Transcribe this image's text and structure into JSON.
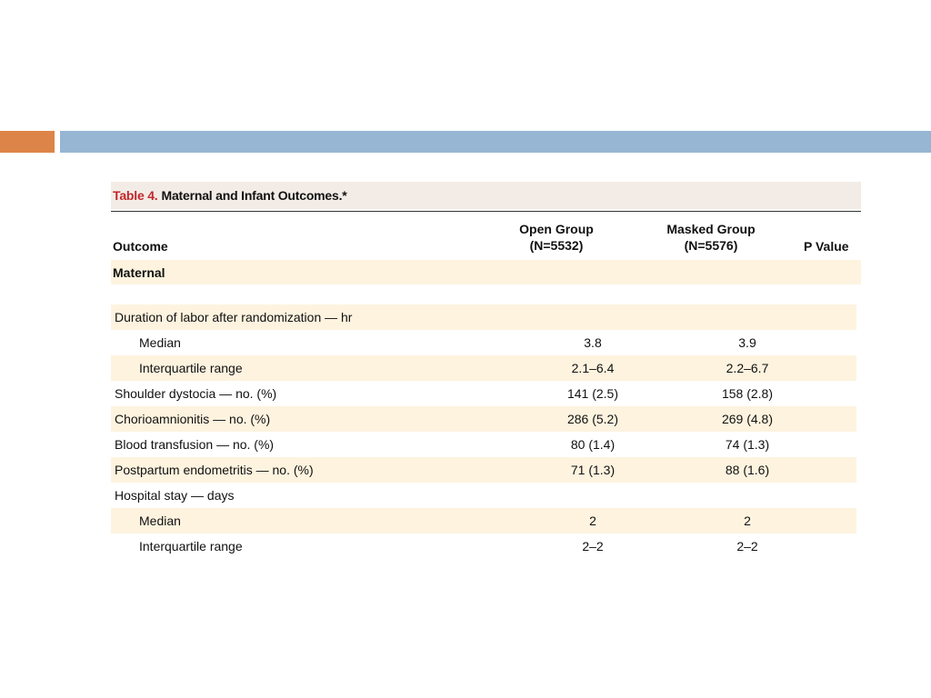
{
  "caption": {
    "label": "Table 4.",
    "title": "Maternal and Infant Outcomes.*"
  },
  "columns": {
    "outcome": "Outcome",
    "open_line1": "Open Group",
    "open_line2": "(N=5532)",
    "masked_line1": "Masked Group",
    "masked_line2": "(N=5576)",
    "p_value": "P Value"
  },
  "section": "Maternal",
  "rows": [
    {
      "label": "Duration of labor after randomization — hr",
      "open": "",
      "masked": "",
      "p": ""
    },
    {
      "label": "Median",
      "open": "3.8",
      "masked": "3.9",
      "p": ""
    },
    {
      "label": "Interquartile range",
      "open": "2.1–6.4",
      "masked": "2.2–6.7",
      "p": ""
    },
    {
      "label": "Shoulder dystocia — no. (%)",
      "open": "141 (2.5)",
      "masked": "158 (2.8)",
      "p": ""
    },
    {
      "label": "Chorioamnionitis — no. (%)",
      "open": "286 (5.2)",
      "masked": "269 (4.8)",
      "p": ""
    },
    {
      "label": "Blood transfusion — no. (%)",
      "open": "80 (1.4)",
      "masked": "74 (1.3)",
      "p": ""
    },
    {
      "label": "Postpartum endometritis — no. (%)",
      "open": "71 (1.3)",
      "masked": "88 (1.6)",
      "p": ""
    },
    {
      "label": "Hospital stay — days",
      "open": "",
      "masked": "",
      "p": ""
    },
    {
      "label": "Median",
      "open": "2",
      "masked": "2",
      "p": ""
    },
    {
      "label": "Interquartile range",
      "open": "2–2",
      "masked": "2–2",
      "p": ""
    }
  ],
  "colors": {
    "accent_orange": "#dd8449",
    "accent_blue": "#97b6d4",
    "caption_red": "#c0282d",
    "row_shade": "#fdf3df"
  }
}
